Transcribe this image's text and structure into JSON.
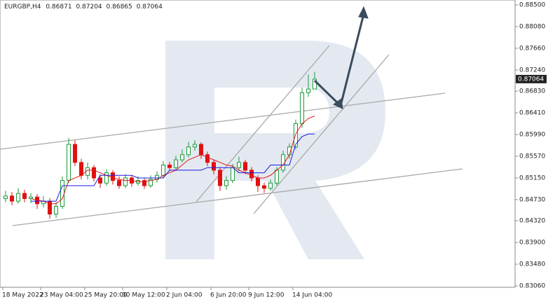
{
  "chart_data": {
    "type": "candlestick",
    "title": "EURGBP,H4",
    "x": [
      "18 May 2022",
      null,
      null,
      null,
      null,
      null,
      "23 May 04:00",
      null,
      null,
      null,
      null,
      null,
      null,
      "25 May 20:00",
      null,
      null,
      null,
      null,
      null,
      "30 May 12:00",
      null,
      null,
      null,
      null,
      null,
      null,
      "2 Jun 04:00",
      null,
      null,
      null,
      null,
      null,
      null,
      "6 Jun 20:00",
      null,
      null,
      null,
      null,
      null,
      "9 Jun 12:00",
      null,
      null,
      null,
      null,
      null,
      null,
      "14 Jun 04:00",
      null,
      null,
      null
    ],
    "open": [
      0.8475,
      0.848,
      0.847,
      0.8485,
      0.8475,
      0.8478,
      0.8465,
      0.847,
      0.8445,
      0.846,
      0.851,
      0.858,
      0.8545,
      0.852,
      0.8535,
      0.8515,
      0.8505,
      0.8525,
      0.851,
      0.85,
      0.8515,
      0.8505,
      0.851,
      0.85,
      0.8512,
      0.852,
      0.854,
      0.8535,
      0.855,
      0.856,
      0.8575,
      0.858,
      0.856,
      0.8545,
      0.853,
      0.85,
      0.851,
      0.8535,
      0.8545,
      0.853,
      0.8515,
      0.85,
      0.8495,
      0.8505,
      0.853,
      0.856,
      0.8575,
      0.862,
      0.868,
      0.86871
    ],
    "high": [
      0.849,
      0.8488,
      0.8495,
      0.8492,
      0.8486,
      0.8484,
      0.848,
      0.8476,
      0.8468,
      0.8518,
      0.8592,
      0.8588,
      0.8552,
      0.8545,
      0.854,
      0.8522,
      0.8532,
      0.853,
      0.8518,
      0.8522,
      0.852,
      0.8518,
      0.8515,
      0.852,
      0.8528,
      0.8548,
      0.8546,
      0.8558,
      0.857,
      0.8585,
      0.8588,
      0.8584,
      0.8566,
      0.855,
      0.8536,
      0.8518,
      0.8542,
      0.8556,
      0.855,
      0.8536,
      0.852,
      0.8506,
      0.8512,
      0.8536,
      0.8568,
      0.8582,
      0.8628,
      0.869,
      0.8715,
      0.87204
    ],
    "low": [
      0.8468,
      0.8462,
      0.8465,
      0.8468,
      0.8466,
      0.8455,
      0.8458,
      0.8436,
      0.8438,
      0.8455,
      0.8505,
      0.8538,
      0.8512,
      0.8512,
      0.8508,
      0.8496,
      0.85,
      0.8502,
      0.8494,
      0.8495,
      0.8498,
      0.85,
      0.8494,
      0.8496,
      0.8506,
      0.8515,
      0.8528,
      0.853,
      0.8545,
      0.8555,
      0.8568,
      0.8552,
      0.8538,
      0.8522,
      0.849,
      0.8492,
      0.8505,
      0.8528,
      0.8522,
      0.8508,
      0.8488,
      0.8486,
      0.849,
      0.85,
      0.8525,
      0.8552,
      0.857,
      0.8612,
      0.8672,
      0.86865
    ],
    "close": [
      0.848,
      0.847,
      0.8485,
      0.8475,
      0.8478,
      0.8465,
      0.847,
      0.8445,
      0.846,
      0.851,
      0.858,
      0.8545,
      0.852,
      0.8535,
      0.8515,
      0.8505,
      0.8525,
      0.851,
      0.85,
      0.8515,
      0.8505,
      0.851,
      0.85,
      0.8512,
      0.852,
      0.854,
      0.8535,
      0.855,
      0.856,
      0.8575,
      0.858,
      0.856,
      0.8545,
      0.853,
      0.85,
      0.851,
      0.8535,
      0.8545,
      0.853,
      0.8515,
      0.85,
      0.8495,
      0.8505,
      0.853,
      0.856,
      0.8575,
      0.862,
      0.868,
      0.86871,
      0.87064
    ],
    "up_color": "#1a9a3a",
    "down_color": "#e01010",
    "lines": [
      {
        "color": "#e01818",
        "values": [
          null,
          null,
          null,
          null,
          0.8475,
          0.8472,
          0.847,
          0.8465,
          0.8465,
          0.8475,
          0.851,
          0.8515,
          0.852,
          0.853,
          0.853,
          0.8525,
          0.852,
          0.8515,
          0.8512,
          0.851,
          0.851,
          0.8508,
          0.8508,
          0.851,
          0.8512,
          0.852,
          0.8525,
          0.853,
          0.854,
          0.855,
          0.8555,
          0.856,
          0.8555,
          0.855,
          0.8545,
          0.854,
          0.8538,
          0.853,
          0.8525,
          0.852,
          0.8515,
          0.8515,
          0.852,
          0.853,
          0.854,
          0.856,
          0.86,
          0.862,
          0.863,
          0.8635
        ]
      },
      {
        "color": "#1c1ce0",
        "values": [
          null,
          null,
          null,
          null,
          0.847,
          0.847,
          0.847,
          0.847,
          0.847,
          0.85,
          0.85,
          0.85,
          0.85,
          0.85,
          0.85,
          0.852,
          0.852,
          0.852,
          0.852,
          0.852,
          0.852,
          0.8515,
          0.8515,
          0.8515,
          0.8515,
          0.8515,
          0.853,
          0.853,
          0.853,
          0.853,
          0.853,
          0.853,
          0.8535,
          0.8535,
          0.8535,
          0.8535,
          0.8535,
          0.8525,
          0.8525,
          0.8525,
          0.8525,
          0.8525,
          0.854,
          0.854,
          0.854,
          0.854,
          0.858,
          0.8595,
          0.86,
          0.86
        ]
      }
    ],
    "ylim": [
      0.8306,
      0.885
    ],
    "yticks": [
      {
        "value": 0.885,
        "label": "0.88500"
      },
      {
        "value": 0.8808,
        "label": "0.88080"
      },
      {
        "value": 0.8766,
        "label": "0.87660"
      },
      {
        "value": 0.8724,
        "label": "0.87240"
      },
      {
        "value": 0.8683,
        "label": "0.86830"
      },
      {
        "value": 0.8641,
        "label": "0.86410"
      },
      {
        "value": 0.8599,
        "label": "0.85990"
      },
      {
        "value": 0.8557,
        "label": "0.85570"
      },
      {
        "value": 0.8515,
        "label": "0.85150"
      },
      {
        "value": 0.8473,
        "label": "0.84730"
      },
      {
        "value": 0.8432,
        "label": "0.84320"
      },
      {
        "value": 0.839,
        "label": "0.83900"
      },
      {
        "value": 0.8348,
        "label": "0.83480"
      },
      {
        "value": 0.8306,
        "label": "0.83060"
      }
    ]
  }
}
